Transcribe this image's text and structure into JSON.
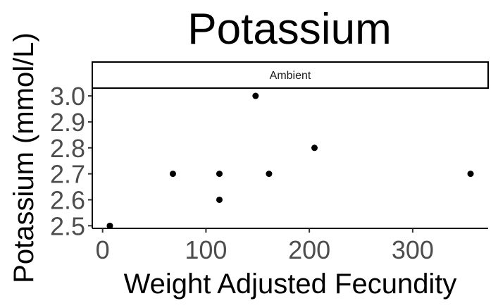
{
  "chart_data": {
    "type": "scatter",
    "title": "Potassium",
    "xlabel": "Weight Adjusted Fecundity",
    "ylabel": "Potassium (mmol/L)",
    "facet_label": "Ambient",
    "x_ticks": [
      0,
      100,
      200,
      300
    ],
    "y_ticks": [
      2.5,
      2.6,
      2.7,
      2.8,
      2.9,
      3.0
    ],
    "y_tick_labels": [
      "2.5",
      "2.6",
      "2.7",
      "2.8",
      "2.9",
      "3.0"
    ],
    "xlim": [
      -10,
      373
    ],
    "ylim": [
      2.49,
      3.03
    ],
    "grid": false,
    "points": [
      {
        "x": 7,
        "y": 2.5
      },
      {
        "x": 68,
        "y": 2.7
      },
      {
        "x": 113,
        "y": 2.7
      },
      {
        "x": 113,
        "y": 2.6
      },
      {
        "x": 148,
        "y": 3.0
      },
      {
        "x": 161,
        "y": 2.7
      },
      {
        "x": 205,
        "y": 2.8
      },
      {
        "x": 356,
        "y": 2.7
      }
    ],
    "point_color": "#000000"
  }
}
